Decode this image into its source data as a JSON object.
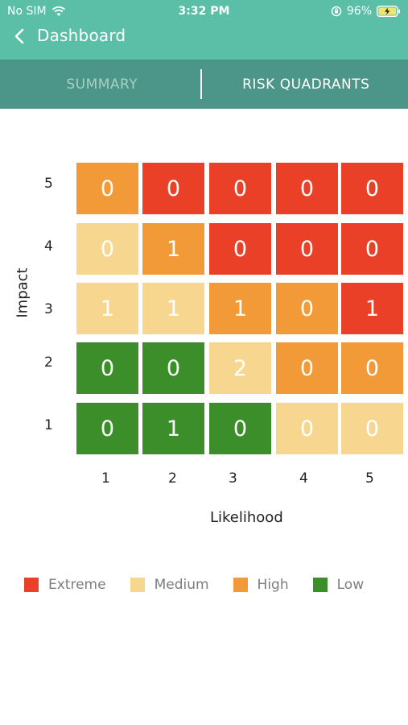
{
  "status_bar": {
    "carrier": "No SIM",
    "time": "3:32 PM",
    "battery": "96%"
  },
  "nav": {
    "back_icon": "chevron-left-icon",
    "title": "Dashboard"
  },
  "tabs": [
    {
      "label": "SUMMARY",
      "active": false
    },
    {
      "label": "RISK QUADRANTS",
      "active": true
    }
  ],
  "colors": {
    "extreme": "#e94027",
    "high": "#f19a37",
    "medium": "#f7d78f",
    "low": "#3c8e2b",
    "header": "#5bbfa8",
    "tabs": "#4b9688"
  },
  "chart_data": {
    "type": "heatmap",
    "ylabel": "Impact",
    "xlabel": "Likelihood",
    "x_ticks": [
      "1",
      "2",
      "3",
      "4",
      "5"
    ],
    "y_ticks": [
      "5",
      "4",
      "3",
      "2",
      "1"
    ],
    "rows": [
      {
        "impact": "5",
        "levels": [
          "high",
          "extreme",
          "extreme",
          "extreme",
          "extreme"
        ],
        "values": [
          "0",
          "0",
          "0",
          "0",
          "0"
        ]
      },
      {
        "impact": "4",
        "levels": [
          "medium",
          "high",
          "extreme",
          "extreme",
          "extreme"
        ],
        "values": [
          "0",
          "1",
          "0",
          "0",
          "0"
        ]
      },
      {
        "impact": "3",
        "levels": [
          "medium",
          "medium",
          "high",
          "high",
          "extreme"
        ],
        "values": [
          "1",
          "1",
          "1",
          "0",
          "1"
        ]
      },
      {
        "impact": "2",
        "levels": [
          "low",
          "low",
          "medium",
          "high",
          "high"
        ],
        "values": [
          "0",
          "0",
          "2",
          "0",
          "0"
        ]
      },
      {
        "impact": "1",
        "levels": [
          "low",
          "low",
          "low",
          "medium",
          "medium"
        ],
        "values": [
          "0",
          "1",
          "0",
          "0",
          "0"
        ]
      }
    ]
  },
  "legend": [
    {
      "label": "Extreme",
      "level": "extreme"
    },
    {
      "label": "Medium",
      "level": "medium"
    },
    {
      "label": "High",
      "level": "high"
    },
    {
      "label": "Low",
      "level": "low"
    }
  ]
}
